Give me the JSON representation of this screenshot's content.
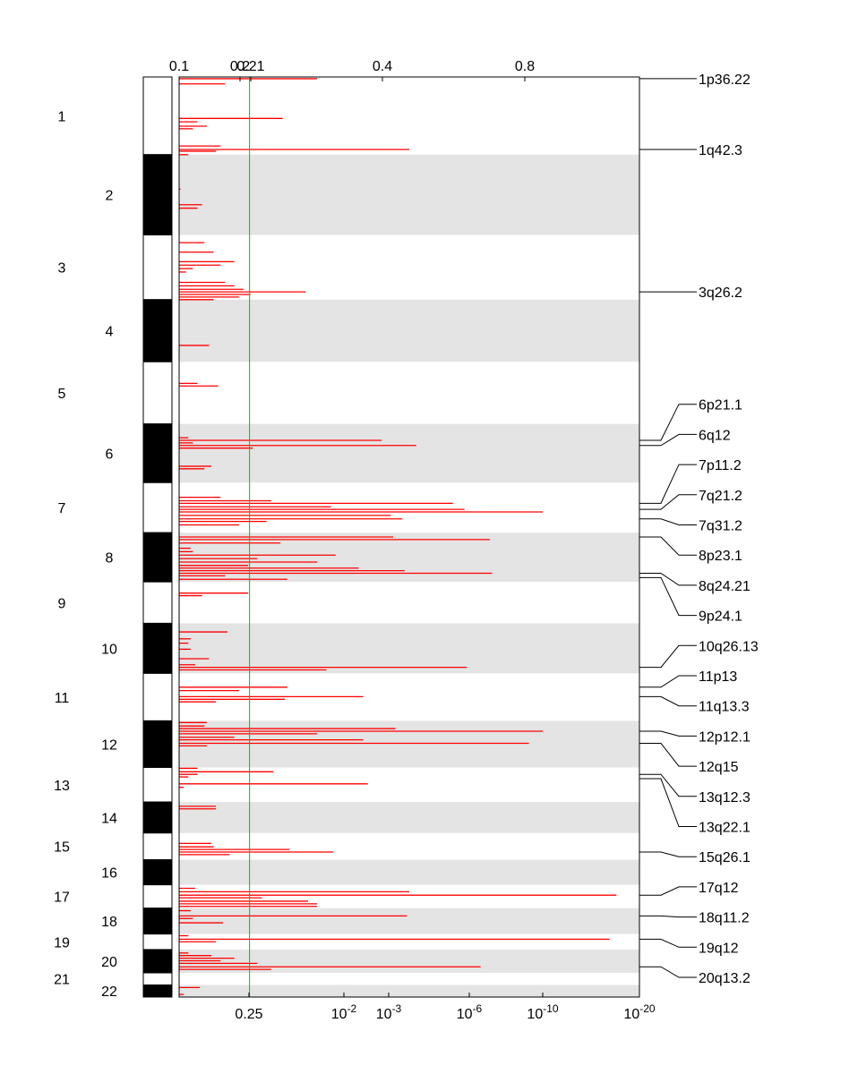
{
  "chart_data": {
    "type": "bar",
    "orientation": "horizontal",
    "description_axis_top": {
      "ticks": [
        "0.1",
        "0.2",
        "0.21",
        "0.4",
        "0.8"
      ]
    },
    "description_axis_bottom": {
      "ticks": [
        {
          "base": "0.25",
          "exp": ""
        },
        {
          "base": "10",
          "exp": "-2"
        },
        {
          "base": "10",
          "exp": "-3"
        },
        {
          "base": "10",
          "exp": "-6"
        },
        {
          "base": "10",
          "exp": "-10"
        },
        {
          "base": "10",
          "exp": "-20"
        }
      ]
    },
    "threshold_line": {
      "label": "0.25",
      "color": "#00c000"
    },
    "bar_color": "#ff0000",
    "band_color": "#e4e4e4",
    "chromosomes": [
      {
        "name": "1",
        "start": 0.0,
        "end": 0.09
      },
      {
        "name": "2",
        "start": 0.09,
        "end": 0.183
      },
      {
        "name": "3",
        "start": 0.183,
        "end": 0.258
      },
      {
        "name": "4",
        "start": 0.258,
        "end": 0.33
      },
      {
        "name": "5",
        "start": 0.33,
        "end": 0.402
      },
      {
        "name": "6",
        "start": 0.402,
        "end": 0.47
      },
      {
        "name": "7",
        "start": 0.47,
        "end": 0.528
      },
      {
        "name": "8",
        "start": 0.528,
        "end": 0.585
      },
      {
        "name": "9",
        "start": 0.585,
        "end": 0.633
      },
      {
        "name": "10",
        "start": 0.633,
        "end": 0.691
      },
      {
        "name": "11",
        "start": 0.691,
        "end": 0.746
      },
      {
        "name": "12",
        "start": 0.746,
        "end": 0.8
      },
      {
        "name": "13",
        "start": 0.8,
        "end": 0.84
      },
      {
        "name": "14",
        "start": 0.84,
        "end": 0.876
      },
      {
        "name": "15",
        "start": 0.876,
        "end": 0.907
      },
      {
        "name": "16",
        "start": 0.907,
        "end": 0.936
      },
      {
        "name": "17",
        "start": 0.936,
        "end": 0.963
      },
      {
        "name": "18",
        "start": 0.963,
        "end": 0.993
      },
      {
        "name": "19",
        "start": 0.993,
        "end": 1.011
      },
      {
        "name": "20",
        "start": 1.011,
        "end": 1.038
      },
      {
        "name": "21",
        "start": 1.038,
        "end": 1.052
      },
      {
        "name": "22",
        "start": 1.052,
        "end": 1.066
      }
    ],
    "genome_length": 1.066,
    "significance_max": 1.0,
    "threshold_value": 0.153,
    "cytobands": [
      {
        "label": "1p36.22",
        "pos": 0.002
      },
      {
        "label": "1q42.3",
        "pos": 0.084
      },
      {
        "label": "3q26.2",
        "pos": 0.249
      },
      {
        "label": "6p21.1",
        "pos": 0.421
      },
      {
        "label": "6q12",
        "pos": 0.427
      },
      {
        "label": "7p11.2",
        "pos": 0.494
      },
      {
        "label": "7q21.2",
        "pos": 0.501
      },
      {
        "label": "7q31.2",
        "pos": 0.512
      },
      {
        "label": "8p23.1",
        "pos": 0.533
      },
      {
        "label": "8q24.21",
        "pos": 0.575
      },
      {
        "label": "9p24.1",
        "pos": 0.58
      },
      {
        "label": "10q26.13",
        "pos": 0.684
      },
      {
        "label": "11p13",
        "pos": 0.707
      },
      {
        "label": "11q13.3",
        "pos": 0.718
      },
      {
        "label": "12p12.1",
        "pos": 0.758
      },
      {
        "label": "12q15",
        "pos": 0.772
      },
      {
        "label": "13q12.3",
        "pos": 0.808
      },
      {
        "label": "13q22.1",
        "pos": 0.813
      },
      {
        "label": "15q26.1",
        "pos": 0.898
      },
      {
        "label": "17q12",
        "pos": 0.948
      },
      {
        "label": "18q11.2",
        "pos": 0.972
      },
      {
        "label": "19q12",
        "pos": 0.999
      },
      {
        "label": "20q13.2",
        "pos": 1.031
      }
    ],
    "peaks": [
      {
        "pos": 0.002,
        "v": 0.3
      },
      {
        "pos": 0.008,
        "v": 0.1
      },
      {
        "pos": 0.048,
        "v": 0.225
      },
      {
        "pos": 0.052,
        "v": 0.04
      },
      {
        "pos": 0.057,
        "v": 0.06
      },
      {
        "pos": 0.06,
        "v": 0.03
      },
      {
        "pos": 0.08,
        "v": 0.09
      },
      {
        "pos": 0.084,
        "v": 0.5
      },
      {
        "pos": 0.086,
        "v": 0.08
      },
      {
        "pos": 0.09,
        "v": 0.02
      },
      {
        "pos": 0.13,
        "v": 0.003
      },
      {
        "pos": 0.148,
        "v": 0.05
      },
      {
        "pos": 0.152,
        "v": 0.04
      },
      {
        "pos": 0.192,
        "v": 0.055
      },
      {
        "pos": 0.203,
        "v": 0.075
      },
      {
        "pos": 0.214,
        "v": 0.12
      },
      {
        "pos": 0.218,
        "v": 0.09
      },
      {
        "pos": 0.222,
        "v": 0.03
      },
      {
        "pos": 0.226,
        "v": 0.015
      },
      {
        "pos": 0.238,
        "v": 0.1
      },
      {
        "pos": 0.242,
        "v": 0.12
      },
      {
        "pos": 0.246,
        "v": 0.14
      },
      {
        "pos": 0.249,
        "v": 0.275
      },
      {
        "pos": 0.252,
        "v": 0.155
      },
      {
        "pos": 0.255,
        "v": 0.13
      },
      {
        "pos": 0.258,
        "v": 0.075
      },
      {
        "pos": 0.311,
        "v": 0.065
      },
      {
        "pos": 0.355,
        "v": 0.04
      },
      {
        "pos": 0.358,
        "v": 0.085
      },
      {
        "pos": 0.418,
        "v": 0.02
      },
      {
        "pos": 0.421,
        "v": 0.44
      },
      {
        "pos": 0.424,
        "v": 0.03
      },
      {
        "pos": 0.427,
        "v": 0.515
      },
      {
        "pos": 0.43,
        "v": 0.16
      },
      {
        "pos": 0.451,
        "v": 0.07
      },
      {
        "pos": 0.454,
        "v": 0.055
      },
      {
        "pos": 0.487,
        "v": 0.09
      },
      {
        "pos": 0.491,
        "v": 0.2
      },
      {
        "pos": 0.494,
        "v": 0.595
      },
      {
        "pos": 0.498,
        "v": 0.33
      },
      {
        "pos": 0.501,
        "v": 0.62
      },
      {
        "pos": 0.504,
        "v": 0.79
      },
      {
        "pos": 0.508,
        "v": 0.46
      },
      {
        "pos": 0.512,
        "v": 0.485
      },
      {
        "pos": 0.515,
        "v": 0.19
      },
      {
        "pos": 0.519,
        "v": 0.13
      },
      {
        "pos": 0.533,
        "v": 0.465
      },
      {
        "pos": 0.536,
        "v": 0.675
      },
      {
        "pos": 0.54,
        "v": 0.22
      },
      {
        "pos": 0.546,
        "v": 0.025
      },
      {
        "pos": 0.55,
        "v": 0.03
      },
      {
        "pos": 0.554,
        "v": 0.34
      },
      {
        "pos": 0.558,
        "v": 0.17
      },
      {
        "pos": 0.562,
        "v": 0.3
      },
      {
        "pos": 0.566,
        "v": 0.15
      },
      {
        "pos": 0.569,
        "v": 0.39
      },
      {
        "pos": 0.572,
        "v": 0.49
      },
      {
        "pos": 0.575,
        "v": 0.68
      },
      {
        "pos": 0.578,
        "v": 0.1
      },
      {
        "pos": 0.582,
        "v": 0.235
      },
      {
        "pos": 0.598,
        "v": 0.15
      },
      {
        "pos": 0.601,
        "v": 0.05
      },
      {
        "pos": 0.643,
        "v": 0.105
      },
      {
        "pos": 0.651,
        "v": 0.025
      },
      {
        "pos": 0.656,
        "v": 0.02
      },
      {
        "pos": 0.663,
        "v": 0.025
      },
      {
        "pos": 0.674,
        "v": 0.065
      },
      {
        "pos": 0.681,
        "v": 0.035
      },
      {
        "pos": 0.684,
        "v": 0.625
      },
      {
        "pos": 0.687,
        "v": 0.32
      },
      {
        "pos": 0.707,
        "v": 0.235
      },
      {
        "pos": 0.711,
        "v": 0.13
      },
      {
        "pos": 0.718,
        "v": 0.4
      },
      {
        "pos": 0.721,
        "v": 0.23
      },
      {
        "pos": 0.724,
        "v": 0.08
      },
      {
        "pos": 0.748,
        "v": 0.06
      },
      {
        "pos": 0.752,
        "v": 0.055
      },
      {
        "pos": 0.755,
        "v": 0.47
      },
      {
        "pos": 0.758,
        "v": 0.79
      },
      {
        "pos": 0.761,
        "v": 0.3
      },
      {
        "pos": 0.765,
        "v": 0.12
      },
      {
        "pos": 0.768,
        "v": 0.4
      },
      {
        "pos": 0.772,
        "v": 0.76
      },
      {
        "pos": 0.775,
        "v": 0.06
      },
      {
        "pos": 0.801,
        "v": 0.04
      },
      {
        "pos": 0.805,
        "v": 0.205
      },
      {
        "pos": 0.808,
        "v": 0.04
      },
      {
        "pos": 0.811,
        "v": 0.02
      },
      {
        "pos": 0.819,
        "v": 0.41
      },
      {
        "pos": 0.823,
        "v": 0.01
      },
      {
        "pos": 0.845,
        "v": 0.08
      },
      {
        "pos": 0.848,
        "v": 0.08
      },
      {
        "pos": 0.888,
        "v": 0.07
      },
      {
        "pos": 0.892,
        "v": 0.075
      },
      {
        "pos": 0.895,
        "v": 0.24
      },
      {
        "pos": 0.898,
        "v": 0.335
      },
      {
        "pos": 0.901,
        "v": 0.11
      },
      {
        "pos": 0.94,
        "v": 0.035
      },
      {
        "pos": 0.944,
        "v": 0.5
      },
      {
        "pos": 0.948,
        "v": 0.95
      },
      {
        "pos": 0.951,
        "v": 0.18
      },
      {
        "pos": 0.955,
        "v": 0.28
      },
      {
        "pos": 0.958,
        "v": 0.3
      },
      {
        "pos": 0.961,
        "v": 0.3
      },
      {
        "pos": 0.966,
        "v": 0.025
      },
      {
        "pos": 0.972,
        "v": 0.495
      },
      {
        "pos": 0.975,
        "v": 0.03
      },
      {
        "pos": 0.98,
        "v": 0.095
      },
      {
        "pos": 0.995,
        "v": 0.02
      },
      {
        "pos": 0.999,
        "v": 0.935
      },
      {
        "pos": 1.002,
        "v": 0.08
      },
      {
        "pos": 1.015,
        "v": 0.02
      },
      {
        "pos": 1.018,
        "v": 0.07
      },
      {
        "pos": 1.021,
        "v": 0.12
      },
      {
        "pos": 1.024,
        "v": 0.09
      },
      {
        "pos": 1.027,
        "v": 0.17
      },
      {
        "pos": 1.031,
        "v": 0.655
      },
      {
        "pos": 1.034,
        "v": 0.2
      },
      {
        "pos": 1.055,
        "v": 0.045
      },
      {
        "pos": 1.063,
        "v": 0.01
      }
    ]
  }
}
